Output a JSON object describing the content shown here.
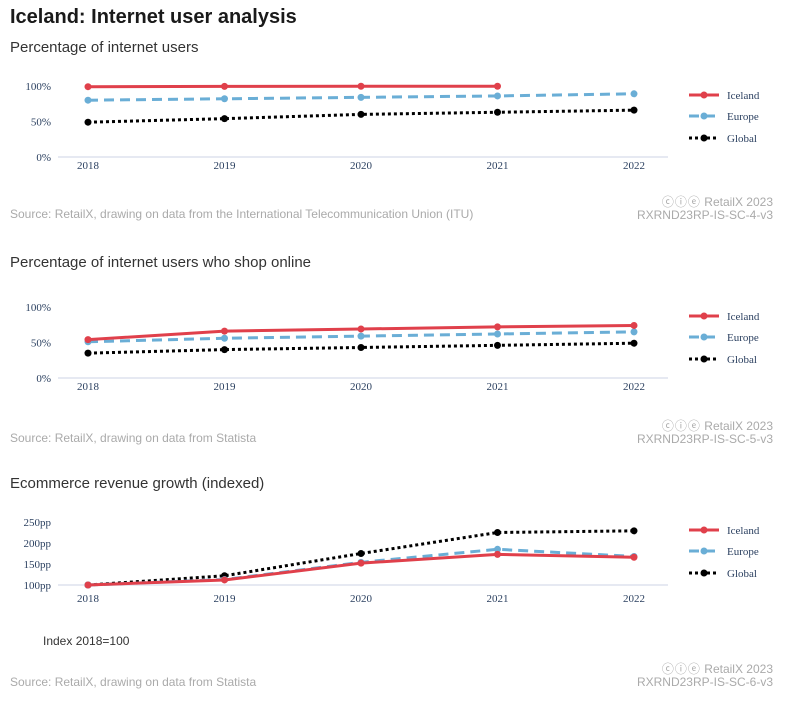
{
  "page": {
    "title": "Iceland: Internet user analysis",
    "credit_icons": "ⓒⓘⓔ",
    "credit_text": "RetailX 2023",
    "index_note": "Index 2018=100"
  },
  "colors": {
    "iceland": "#e0404b",
    "europe": "#6aaed6",
    "global": "#000000",
    "axis": "#e6e9f2"
  },
  "chart_data": [
    {
      "type": "line",
      "title": "Percentage of internet users",
      "x": [
        "2018",
        "2019",
        "2020",
        "2021",
        "2022"
      ],
      "ylim": [
        0,
        100
      ],
      "yticks": [
        0,
        50,
        100
      ],
      "ytick_labels": [
        "0%",
        "50%",
        "100%"
      ],
      "series": [
        {
          "name": "Iceland",
          "values": [
            99,
            99.5,
            99.6,
            99.7,
            null
          ]
        },
        {
          "name": "Europe",
          "values": [
            80,
            82,
            84,
            86,
            89
          ]
        },
        {
          "name": "Global",
          "values": [
            49,
            54,
            60,
            63,
            66
          ]
        }
      ],
      "source": "Source: RetailX, drawing on data from the International Telecommunication Union (ITU)",
      "code": "RXRND23RP-IS-SC-4-v3"
    },
    {
      "type": "line",
      "title": "Percentage of internet users who shop online",
      "x": [
        "2018",
        "2019",
        "2020",
        "2021",
        "2022"
      ],
      "ylim": [
        0,
        100
      ],
      "yticks": [
        0,
        50,
        100
      ],
      "ytick_labels": [
        "0%",
        "50%",
        "100%"
      ],
      "series": [
        {
          "name": "Iceland",
          "values": [
            54,
            66,
            69,
            72,
            74
          ]
        },
        {
          "name": "Europe",
          "values": [
            51,
            56,
            59,
            62,
            65
          ]
        },
        {
          "name": "Global",
          "values": [
            35,
            40,
            43,
            46,
            49
          ]
        }
      ],
      "source": "Source: RetailX, drawing on data from Statista",
      "code": "RXRND23RP-IS-SC-5-v3"
    },
    {
      "type": "line",
      "title": "Ecommerce revenue growth (indexed)",
      "x": [
        "2018",
        "2019",
        "2020",
        "2021",
        "2022"
      ],
      "ylim": [
        100,
        250
      ],
      "yticks": [
        100,
        150,
        200,
        250
      ],
      "ytick_labels": [
        "100pp",
        "150pp",
        "200pp",
        "250pp"
      ],
      "series": [
        {
          "name": "Iceland",
          "values": [
            100,
            112,
            152,
            173,
            166
          ]
        },
        {
          "name": "Europe",
          "values": [
            100,
            113,
            154,
            185,
            168
          ]
        },
        {
          "name": "Global",
          "values": [
            100,
            122,
            175,
            225,
            229
          ]
        }
      ],
      "source": "Source: RetailX, drawing on data from Statista",
      "code": "RXRND23RP-IS-SC-6-v3"
    }
  ]
}
